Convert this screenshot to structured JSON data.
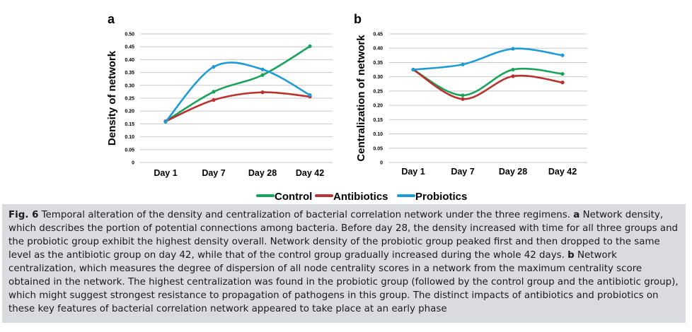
{
  "colors": {
    "Control": "#1aa35a",
    "Antibiotics": "#b8322f",
    "Probiotics": "#1f9bd6",
    "gridline": "#c8c8c8",
    "caption_bg": "#d9dbde"
  },
  "chart_data": [
    {
      "type": "line",
      "panel_label": "a",
      "title": "",
      "xlabel": "",
      "ylabel": "Density of network",
      "categories": [
        "Day 1",
        "Day 7",
        "Day 28",
        "Day 42"
      ],
      "ylim": [
        0,
        0.5
      ],
      "yticks": [
        "0",
        "0.05",
        "0.10",
        "0.15",
        "0.20",
        "0.25",
        "0.30",
        "0.35",
        "0.40",
        "0.45",
        "0.50"
      ],
      "smooth": true,
      "grid": true,
      "series": [
        {
          "name": "Control",
          "values": [
            0.16,
            0.275,
            0.34,
            0.452
          ]
        },
        {
          "name": "Antibiotics",
          "values": [
            0.16,
            0.243,
            0.273,
            0.256
          ]
        },
        {
          "name": "Probiotics",
          "values": [
            0.158,
            0.372,
            0.362,
            0.262
          ]
        }
      ]
    },
    {
      "type": "line",
      "panel_label": "b",
      "title": "",
      "xlabel": "",
      "ylabel": "Centralization of network",
      "categories": [
        "Day 1",
        "Day 7",
        "Day 28",
        "Day 42"
      ],
      "ylim": [
        0,
        0.45
      ],
      "yticks": [
        "0",
        "0.05",
        "0.10",
        "0.15",
        "0.20",
        "0.25",
        "0.30",
        "0.35",
        "0.40",
        "0.45"
      ],
      "smooth": true,
      "grid": true,
      "series": [
        {
          "name": "Control",
          "values": [
            0.325,
            0.235,
            0.325,
            0.31
          ]
        },
        {
          "name": "Antibiotics",
          "values": [
            0.325,
            0.222,
            0.302,
            0.28
          ]
        },
        {
          "name": "Probiotics",
          "values": [
            0.325,
            0.343,
            0.398,
            0.375
          ]
        }
      ]
    }
  ],
  "legend": {
    "position": "bottom-center",
    "items": [
      "Control",
      "Antibiotics",
      "Probiotics"
    ]
  },
  "caption": {
    "label": "Fig. 6",
    "intro": " Temporal alteration of the density and centralization of bacterial correlation network under the three regimens. ",
    "part_a_label": "a",
    "part_a_text": " Network density, which describes the portion of potential connections among bacteria. Before day 28, the density increased with time for all three groups and the probiotic group exhibit the highest density overall. Network density of the probiotic group peaked first and then dropped to the same level as the antibiotic group on day 42, while that of the control group gradually increased during the whole 42 days. ",
    "part_b_label": "b",
    "part_b_text": " Network centralization, which measures the degree of dispersion of all node centrality scores in a network from the maximum centrality score obtained in the network. The highest centralization was found in the probiotic group (followed by the control group and the antibiotic group), which might suggest strongest resistance to propagation of pathogens in this group. The distinct impacts of antibiotics and probiotics on these key features of bacterial correlation network appeared to take place at an early phase"
  }
}
